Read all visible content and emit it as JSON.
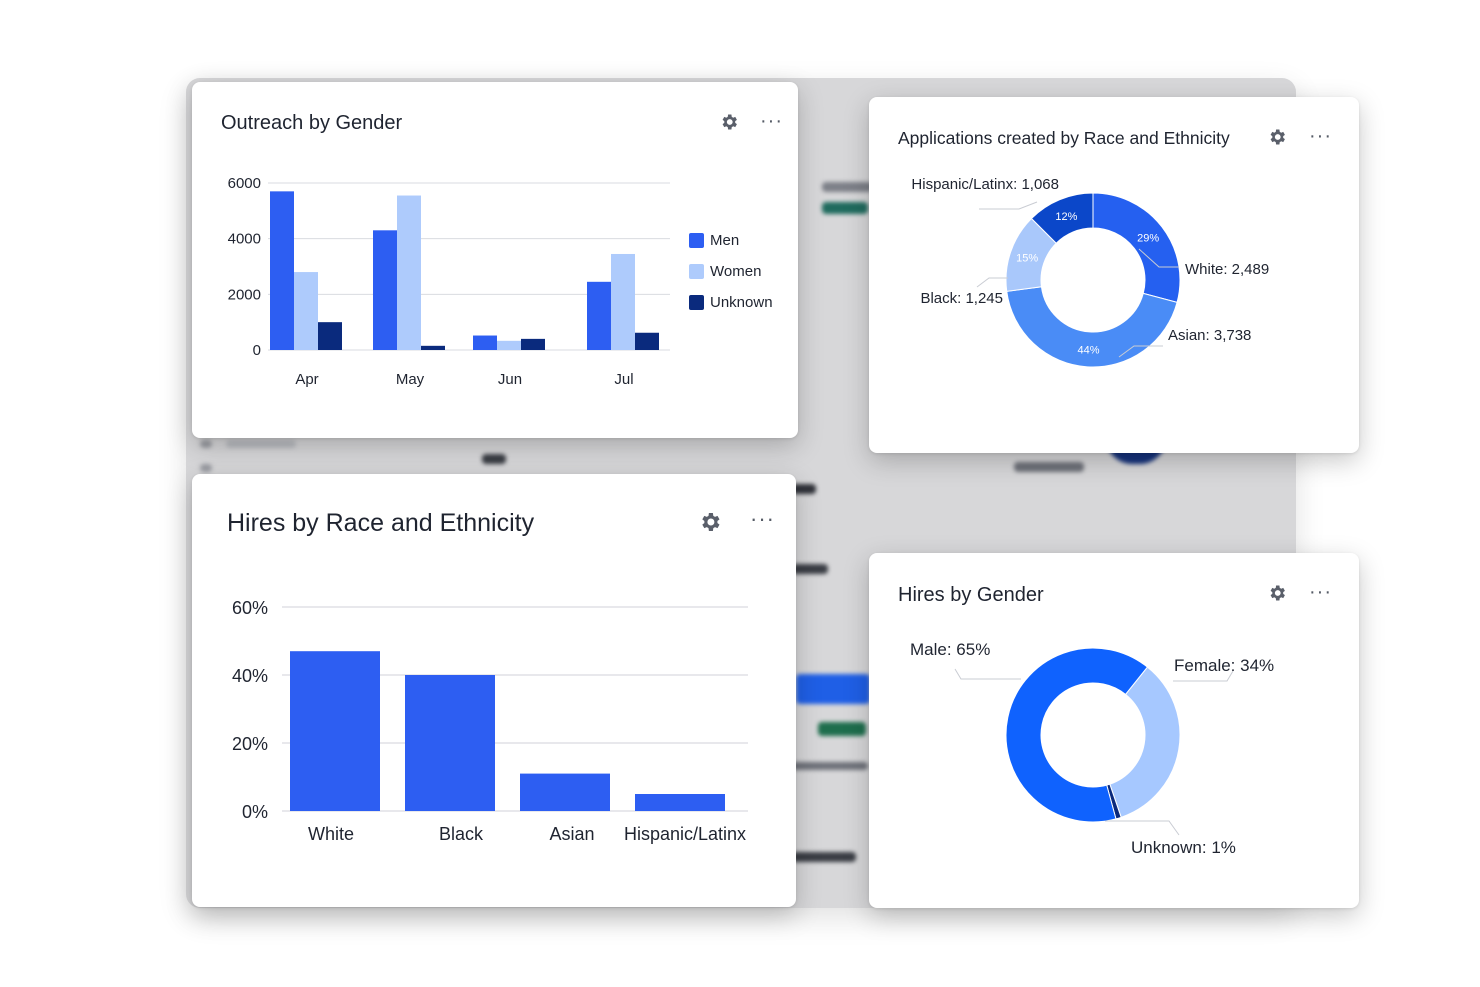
{
  "colors": {
    "men": "#2d5ef2",
    "women": "#aecbfc",
    "unknown": "#0a2a7d",
    "hires_bar": "#2d5ef2",
    "donut": [
      "#2560f0",
      "#4a8cf6",
      "#a9c8fb",
      "#0b47c9"
    ],
    "gender_donut": [
      "#0f62fe",
      "#a6c8ff",
      "#0a2a7d"
    ],
    "grid": "#d9dbe0"
  },
  "cards": {
    "outreach": {
      "title": "Outreach by Gender",
      "gear_icon": "gear-icon",
      "more_icon": "more-horizontal-icon",
      "more_label": "···"
    },
    "applications": {
      "title": "Applications created by Race and Ethnicity",
      "gear_icon": "gear-icon",
      "more_icon": "more-horizontal-icon",
      "more_label": "···"
    },
    "hires_race": {
      "title": "Hires by Race and Ethnicity",
      "gear_icon": "gear-icon",
      "more_icon": "more-horizontal-icon",
      "more_label": "···"
    },
    "hires_gender": {
      "title": "Hires by Gender",
      "gear_icon": "gear-icon",
      "more_icon": "more-horizontal-icon",
      "more_label": "···"
    }
  },
  "chart_data": [
    {
      "id": "outreach",
      "type": "bar",
      "title": "Outreach by Gender",
      "categories": [
        "Apr",
        "May",
        "Jun",
        "Jul"
      ],
      "series": [
        {
          "name": "Men",
          "values": [
            5700,
            4300,
            520,
            2450
          ]
        },
        {
          "name": "Women",
          "values": [
            2800,
            5550,
            330,
            3450
          ]
        },
        {
          "name": "Unknown",
          "values": [
            1000,
            150,
            400,
            620
          ]
        }
      ],
      "yticks": [
        "6000",
        "4000",
        "2000",
        "0"
      ],
      "ylim": [
        0,
        6000
      ],
      "grid": true,
      "legend": "right"
    },
    {
      "id": "applications",
      "type": "pie",
      "title": "Applications created by Race and Ethnicity",
      "slices": [
        {
          "label": "White: 2,489",
          "value": 2489,
          "pct": "29%"
        },
        {
          "label": "Asian: 3,738",
          "value": 3738,
          "pct": "44%"
        },
        {
          "label": "Black: 1,245",
          "value": 1245,
          "pct": "15%"
        },
        {
          "label": "Hispanic/Latinx: 1,068",
          "value": 1068,
          "pct": "12%"
        }
      ]
    },
    {
      "id": "hires_race",
      "type": "bar",
      "title": "Hires by Race and Ethnicity",
      "categories": [
        "White",
        "Black",
        "Asian",
        "Hispanic/Latinx"
      ],
      "values": [
        47,
        40,
        11,
        5
      ],
      "yticks": [
        "60%",
        "40%",
        "20%",
        "0%"
      ],
      "ylim": [
        0,
        60
      ],
      "grid": true
    },
    {
      "id": "hires_gender",
      "type": "pie",
      "title": "Hires by Gender",
      "slices": [
        {
          "label": "Male: 65%",
          "value": 65
        },
        {
          "label": "Female: 34%",
          "value": 34
        },
        {
          "label": "Unknown: 1%",
          "value": 1
        }
      ]
    }
  ]
}
